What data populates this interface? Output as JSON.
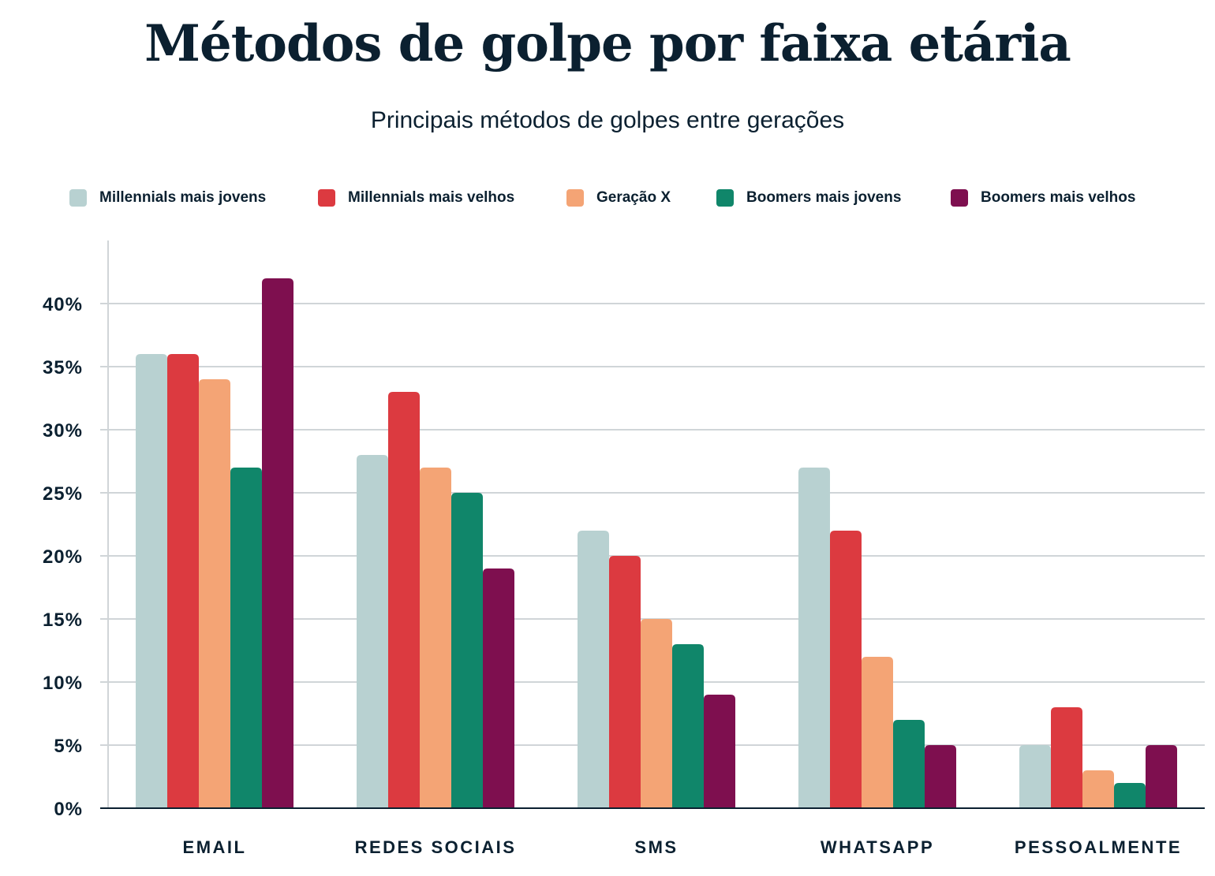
{
  "chart_data": {
    "type": "bar",
    "title": "Métodos de golpe por faixa etária",
    "subtitle": "Principais métodos de golpes entre gerações",
    "xlabel": "",
    "ylabel": "",
    "ylim": [
      0,
      45
    ],
    "yticks": [
      "0%",
      "5%",
      "10%",
      "15%",
      "20%",
      "25%",
      "30%",
      "35%",
      "40%"
    ],
    "grid": true,
    "legend_position": "top",
    "categories": [
      "EMAIL",
      "REDES SOCIAIS",
      "SMS",
      "WHATSAPP",
      "PESSOALMENTE"
    ],
    "series": [
      {
        "name": "Millennials mais jovens",
        "color": "#b8d1d1",
        "values": [
          36,
          28,
          22,
          27,
          5
        ]
      },
      {
        "name": "Millennials mais velhos",
        "color": "#dc3a40",
        "values": [
          36,
          33,
          20,
          22,
          8
        ]
      },
      {
        "name": "Geração X",
        "color": "#f4a475",
        "values": [
          34,
          27,
          15,
          12,
          3
        ]
      },
      {
        "name": "Boomers mais jovens",
        "color": "#10866a",
        "values": [
          27,
          25,
          13,
          7,
          2
        ]
      },
      {
        "name": "Boomers mais velhos",
        "color": "#7e0f4f",
        "values": [
          42,
          19,
          9,
          5,
          5
        ]
      }
    ]
  }
}
